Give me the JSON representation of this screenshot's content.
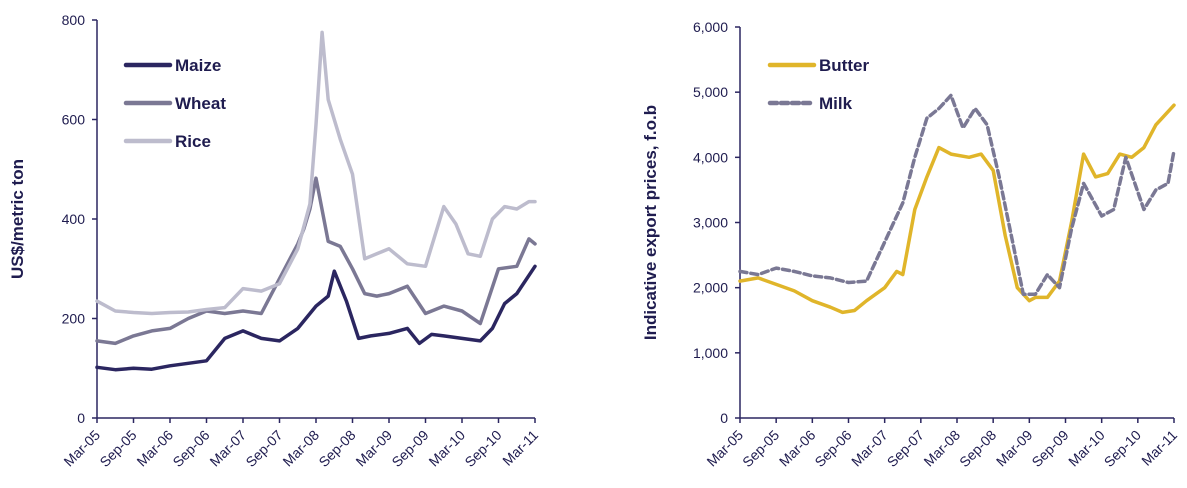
{
  "chart_data": [
    {
      "type": "line",
      "title": "",
      "xlabel": "",
      "ylabel": "US$/metric ton",
      "ylim": [
        0,
        800
      ],
      "yticks": [
        {
          "value": 0,
          "label": "0"
        },
        {
          "value": 200,
          "label": "200"
        },
        {
          "value": 400,
          "label": "400"
        },
        {
          "value": 600,
          "label": "600"
        },
        {
          "value": 800,
          "label": "800"
        }
      ],
      "xticks": [
        "Mar-05",
        "Sep-05",
        "Mar-06",
        "Sep-06",
        "Mar-07",
        "Sep-07",
        "Mar-08",
        "Sep-08",
        "Mar-09",
        "Sep-09",
        "Mar-10",
        "Sep-10",
        "Mar-11"
      ],
      "x_start": "2005-03",
      "x_end": "2011-03",
      "legend_position": "top-left",
      "series": [
        {
          "name": "Maize",
          "color": "#2b2660",
          "points": [
            [
              "2005-03",
              102
            ],
            [
              "2005-06",
              97
            ],
            [
              "2005-09",
              100
            ],
            [
              "2005-12",
              98
            ],
            [
              "2006-03",
              105
            ],
            [
              "2006-06",
              110
            ],
            [
              "2006-09",
              115
            ],
            [
              "2006-12",
              160
            ],
            [
              "2007-03",
              175
            ],
            [
              "2007-06",
              160
            ],
            [
              "2007-09",
              155
            ],
            [
              "2007-12",
              180
            ],
            [
              "2008-03",
              225
            ],
            [
              "2008-05",
              245
            ],
            [
              "2008-06",
              295
            ],
            [
              "2008-08",
              235
            ],
            [
              "2008-10",
              160
            ],
            [
              "2008-12",
              165
            ],
            [
              "2009-03",
              170
            ],
            [
              "2009-06",
              180
            ],
            [
              "2009-08",
              150
            ],
            [
              "2009-10",
              168
            ],
            [
              "2009-12",
              165
            ],
            [
              "2010-03",
              160
            ],
            [
              "2010-06",
              155
            ],
            [
              "2010-08",
              180
            ],
            [
              "2010-10",
              230
            ],
            [
              "2010-12",
              250
            ],
            [
              "2011-03",
              305
            ]
          ]
        },
        {
          "name": "Wheat",
          "color": "#7b7894",
          "points": [
            [
              "2005-03",
              155
            ],
            [
              "2005-06",
              150
            ],
            [
              "2005-09",
              165
            ],
            [
              "2005-12",
              175
            ],
            [
              "2006-03",
              180
            ],
            [
              "2006-06",
              200
            ],
            [
              "2006-09",
              215
            ],
            [
              "2006-12",
              210
            ],
            [
              "2007-03",
              215
            ],
            [
              "2007-06",
              210
            ],
            [
              "2007-09",
              280
            ],
            [
              "2007-12",
              350
            ],
            [
              "2008-01",
              380
            ],
            [
              "2008-02",
              420
            ],
            [
              "2008-03",
              482
            ],
            [
              "2008-05",
              355
            ],
            [
              "2008-07",
              345
            ],
            [
              "2008-09",
              300
            ],
            [
              "2008-11",
              250
            ],
            [
              "2009-01",
              245
            ],
            [
              "2009-03",
              250
            ],
            [
              "2009-06",
              265
            ],
            [
              "2009-09",
              210
            ],
            [
              "2009-12",
              225
            ],
            [
              "2010-03",
              215
            ],
            [
              "2010-06",
              190
            ],
            [
              "2010-09",
              300
            ],
            [
              "2010-12",
              305
            ],
            [
              "2011-02",
              360
            ],
            [
              "2011-03",
              350
            ]
          ]
        },
        {
          "name": "Rice",
          "color": "#bdbccd",
          "points": [
            [
              "2005-03",
              235
            ],
            [
              "2005-06",
              215
            ],
            [
              "2005-09",
              212
            ],
            [
              "2005-12",
              210
            ],
            [
              "2006-03",
              212
            ],
            [
              "2006-06",
              213
            ],
            [
              "2006-09",
              218
            ],
            [
              "2006-12",
              222
            ],
            [
              "2007-03",
              260
            ],
            [
              "2007-06",
              255
            ],
            [
              "2007-09",
              270
            ],
            [
              "2007-12",
              340
            ],
            [
              "2008-02",
              430
            ],
            [
              "2008-03",
              590
            ],
            [
              "2008-04",
              775
            ],
            [
              "2008-05",
              640
            ],
            [
              "2008-07",
              560
            ],
            [
              "2008-09",
              490
            ],
            [
              "2008-11",
              320
            ],
            [
              "2009-01",
              330
            ],
            [
              "2009-03",
              340
            ],
            [
              "2009-06",
              310
            ],
            [
              "2009-09",
              305
            ],
            [
              "2009-12",
              425
            ],
            [
              "2010-02",
              390
            ],
            [
              "2010-04",
              330
            ],
            [
              "2010-06",
              325
            ],
            [
              "2010-08",
              400
            ],
            [
              "2010-10",
              425
            ],
            [
              "2010-12",
              420
            ],
            [
              "2011-02",
              435
            ],
            [
              "2011-03",
              435
            ]
          ]
        }
      ]
    },
    {
      "type": "line",
      "title": "",
      "xlabel": "",
      "ylabel": "Indicative export prices, f.o.b",
      "ylim": [
        0,
        6000
      ],
      "yticks": [
        {
          "value": 0,
          "label": "0"
        },
        {
          "value": 1000,
          "label": "1,000"
        },
        {
          "value": 2000,
          "label": "2,000"
        },
        {
          "value": 3000,
          "label": "3,000"
        },
        {
          "value": 4000,
          "label": "4,000"
        },
        {
          "value": 5000,
          "label": "5,000"
        },
        {
          "value": 6000,
          "label": "6,000"
        }
      ],
      "xticks": [
        "Mar-05",
        "Sep-05",
        "Mar-06",
        "Sep-06",
        "Mar-07",
        "Sep-07",
        "Mar-08",
        "Sep-08",
        "Mar-09",
        "Sep-09",
        "Mar-10",
        "Sep-10",
        "Mar-11"
      ],
      "x_start": "2005-03",
      "x_end": "2011-03",
      "legend_position": "top-left",
      "series": [
        {
          "name": "Butter",
          "color": "#e0b52a",
          "style": "solid",
          "points": [
            [
              "2005-03",
              2100
            ],
            [
              "2005-06",
              2150
            ],
            [
              "2005-09",
              2050
            ],
            [
              "2005-12",
              1950
            ],
            [
              "2006-03",
              1800
            ],
            [
              "2006-06",
              1700
            ],
            [
              "2006-08",
              1620
            ],
            [
              "2006-10",
              1650
            ],
            [
              "2006-12",
              1800
            ],
            [
              "2007-03",
              2000
            ],
            [
              "2007-05",
              2250
            ],
            [
              "2007-06",
              2200
            ],
            [
              "2007-08",
              3200
            ],
            [
              "2007-10",
              3700
            ],
            [
              "2007-12",
              4150
            ],
            [
              "2008-02",
              4050
            ],
            [
              "2008-05",
              4000
            ],
            [
              "2008-07",
              4050
            ],
            [
              "2008-09",
              3800
            ],
            [
              "2008-11",
              2800
            ],
            [
              "2009-01",
              2000
            ],
            [
              "2009-03",
              1800
            ],
            [
              "2009-04",
              1850
            ],
            [
              "2009-06",
              1850
            ],
            [
              "2009-08",
              2100
            ],
            [
              "2009-10",
              3000
            ],
            [
              "2009-12",
              4050
            ],
            [
              "2010-02",
              3700
            ],
            [
              "2010-04",
              3750
            ],
            [
              "2010-06",
              4050
            ],
            [
              "2010-08",
              4000
            ],
            [
              "2010-10",
              4150
            ],
            [
              "2010-12",
              4500
            ],
            [
              "2011-03",
              4800
            ]
          ]
        },
        {
          "name": "Milk",
          "color": "#7a7894",
          "style": "dashed",
          "points": [
            [
              "2005-03",
              2250
            ],
            [
              "2005-06",
              2200
            ],
            [
              "2005-09",
              2300
            ],
            [
              "2005-12",
              2250
            ],
            [
              "2006-03",
              2180
            ],
            [
              "2006-06",
              2150
            ],
            [
              "2006-09",
              2080
            ],
            [
              "2006-12",
              2100
            ],
            [
              "2007-03",
              2700
            ],
            [
              "2007-06",
              3300
            ],
            [
              "2007-08",
              4000
            ],
            [
              "2007-10",
              4600
            ],
            [
              "2007-12",
              4750
            ],
            [
              "2008-02",
              4950
            ],
            [
              "2008-04",
              4450
            ],
            [
              "2008-06",
              4750
            ],
            [
              "2008-08",
              4500
            ],
            [
              "2008-10",
              3700
            ],
            [
              "2008-12",
              2800
            ],
            [
              "2009-02",
              1900
            ],
            [
              "2009-04",
              1900
            ],
            [
              "2009-06",
              2200
            ],
            [
              "2009-08",
              2000
            ],
            [
              "2009-10",
              2900
            ],
            [
              "2009-12",
              3600
            ],
            [
              "2010-03",
              3100
            ],
            [
              "2010-05",
              3200
            ],
            [
              "2010-07",
              4000
            ],
            [
              "2010-10",
              3200
            ],
            [
              "2010-12",
              3500
            ],
            [
              "2011-02",
              3600
            ],
            [
              "2011-03",
              4100
            ]
          ]
        }
      ]
    }
  ]
}
